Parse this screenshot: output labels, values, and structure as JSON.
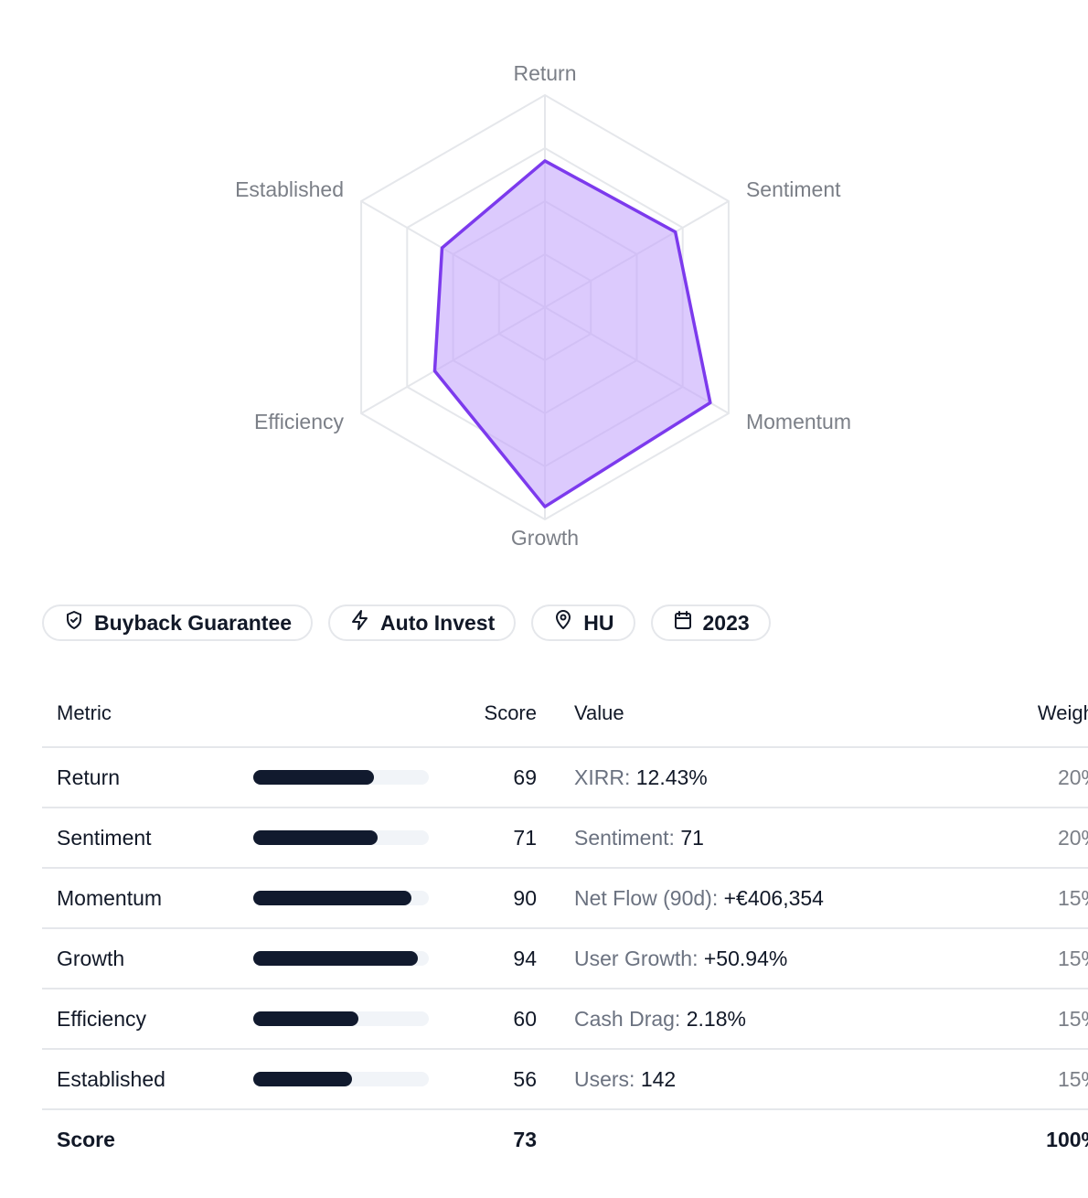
{
  "chart_data": {
    "type": "radar",
    "axes": [
      "Return",
      "Sentiment",
      "Momentum",
      "Growth",
      "Efficiency",
      "Established"
    ],
    "values": [
      69,
      71,
      90,
      94,
      60,
      56
    ],
    "max": 100,
    "grid_levels": 4,
    "colors": {
      "stroke": "#7c3aed",
      "fill": "#c4a7fb",
      "grid": "#e5e7eb"
    }
  },
  "badges": [
    {
      "icon": "shield-check-icon",
      "label": "Buyback Guarantee"
    },
    {
      "icon": "lightning-icon",
      "label": "Auto Invest"
    },
    {
      "icon": "map-pin-icon",
      "label": "HU"
    },
    {
      "icon": "calendar-icon",
      "label": "2023"
    }
  ],
  "table": {
    "headers": {
      "metric": "Metric",
      "score": "Score",
      "value": "Value",
      "weight": "Weight"
    },
    "rows": [
      {
        "metric": "Return",
        "score": 69,
        "value_label": "XIRR:",
        "value": "12.43%",
        "weight": "20%"
      },
      {
        "metric": "Sentiment",
        "score": 71,
        "value_label": "Sentiment:",
        "value": "71",
        "weight": "20%"
      },
      {
        "metric": "Momentum",
        "score": 90,
        "value_label": "Net Flow (90d):",
        "value": "+€406,354",
        "weight": "15%"
      },
      {
        "metric": "Growth",
        "score": 94,
        "value_label": "User Growth:",
        "value": "+50.94%",
        "weight": "15%"
      },
      {
        "metric": "Efficiency",
        "score": 60,
        "value_label": "Cash Drag:",
        "value": "2.18%",
        "weight": "15%"
      },
      {
        "metric": "Established",
        "score": 56,
        "value_label": "Users:",
        "value": "142",
        "weight": "15%"
      }
    ],
    "total": {
      "label": "Score",
      "score": "73",
      "weight": "100%"
    }
  }
}
